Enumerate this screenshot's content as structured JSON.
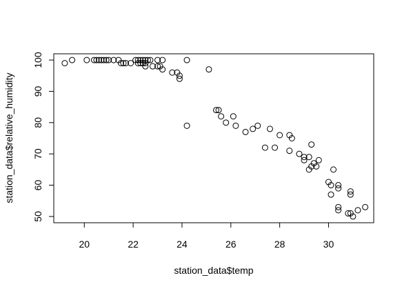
{
  "chart_data": {
    "type": "scatter",
    "title": "",
    "xlabel": "station_data$temp",
    "ylabel": "station_data$relative_humidity",
    "xlim": [
      18.75,
      31.85
    ],
    "ylim": [
      48,
      102
    ],
    "xticks": [
      20,
      22,
      24,
      26,
      28,
      30
    ],
    "yticks": [
      50,
      60,
      70,
      80,
      90,
      100
    ],
    "grid": false,
    "marker": "open-circle",
    "points": [
      [
        19.2,
        99
      ],
      [
        19.5,
        100
      ],
      [
        20.1,
        100
      ],
      [
        20.4,
        100
      ],
      [
        20.5,
        100
      ],
      [
        20.6,
        100
      ],
      [
        20.7,
        100
      ],
      [
        20.8,
        100
      ],
      [
        20.9,
        100
      ],
      [
        21.0,
        100
      ],
      [
        21.2,
        100
      ],
      [
        21.4,
        100
      ],
      [
        21.5,
        99
      ],
      [
        21.6,
        99
      ],
      [
        21.7,
        99
      ],
      [
        21.9,
        99
      ],
      [
        22.1,
        100
      ],
      [
        22.2,
        99
      ],
      [
        22.2,
        100
      ],
      [
        22.3,
        99
      ],
      [
        22.3,
        100
      ],
      [
        22.4,
        99
      ],
      [
        22.4,
        100
      ],
      [
        22.5,
        99
      ],
      [
        22.5,
        98
      ],
      [
        22.5,
        100
      ],
      [
        22.6,
        100
      ],
      [
        22.7,
        100
      ],
      [
        22.8,
        98
      ],
      [
        23.0,
        100
      ],
      [
        23.0,
        98
      ],
      [
        23.1,
        98
      ],
      [
        23.2,
        97
      ],
      [
        23.2,
        100
      ],
      [
        23.6,
        96
      ],
      [
        23.8,
        96
      ],
      [
        23.9,
        95
      ],
      [
        23.9,
        94
      ],
      [
        24.2,
        100
      ],
      [
        24.2,
        79
      ],
      [
        25.1,
        97
      ],
      [
        25.4,
        84
      ],
      [
        25.5,
        84
      ],
      [
        25.6,
        82
      ],
      [
        25.8,
        80
      ],
      [
        26.1,
        82
      ],
      [
        26.2,
        79
      ],
      [
        26.6,
        77
      ],
      [
        26.9,
        78
      ],
      [
        27.1,
        79
      ],
      [
        27.4,
        72
      ],
      [
        27.6,
        78
      ],
      [
        27.8,
        72
      ],
      [
        28.0,
        76
      ],
      [
        28.4,
        76
      ],
      [
        28.4,
        71
      ],
      [
        28.5,
        75
      ],
      [
        28.8,
        70
      ],
      [
        29.0,
        69
      ],
      [
        29.0,
        68
      ],
      [
        29.2,
        69
      ],
      [
        29.2,
        65
      ],
      [
        29.3,
        73
      ],
      [
        29.3,
        66
      ],
      [
        29.4,
        67
      ],
      [
        29.5,
        66
      ],
      [
        29.6,
        68
      ],
      [
        30.0,
        61
      ],
      [
        30.1,
        60
      ],
      [
        30.1,
        57
      ],
      [
        30.2,
        65
      ],
      [
        30.4,
        60
      ],
      [
        30.4,
        59
      ],
      [
        30.4,
        53
      ],
      [
        30.4,
        52
      ],
      [
        30.8,
        51
      ],
      [
        30.9,
        58
      ],
      [
        30.9,
        57
      ],
      [
        30.9,
        51
      ],
      [
        31.0,
        50
      ],
      [
        31.2,
        52
      ],
      [
        31.5,
        53
      ]
    ]
  }
}
